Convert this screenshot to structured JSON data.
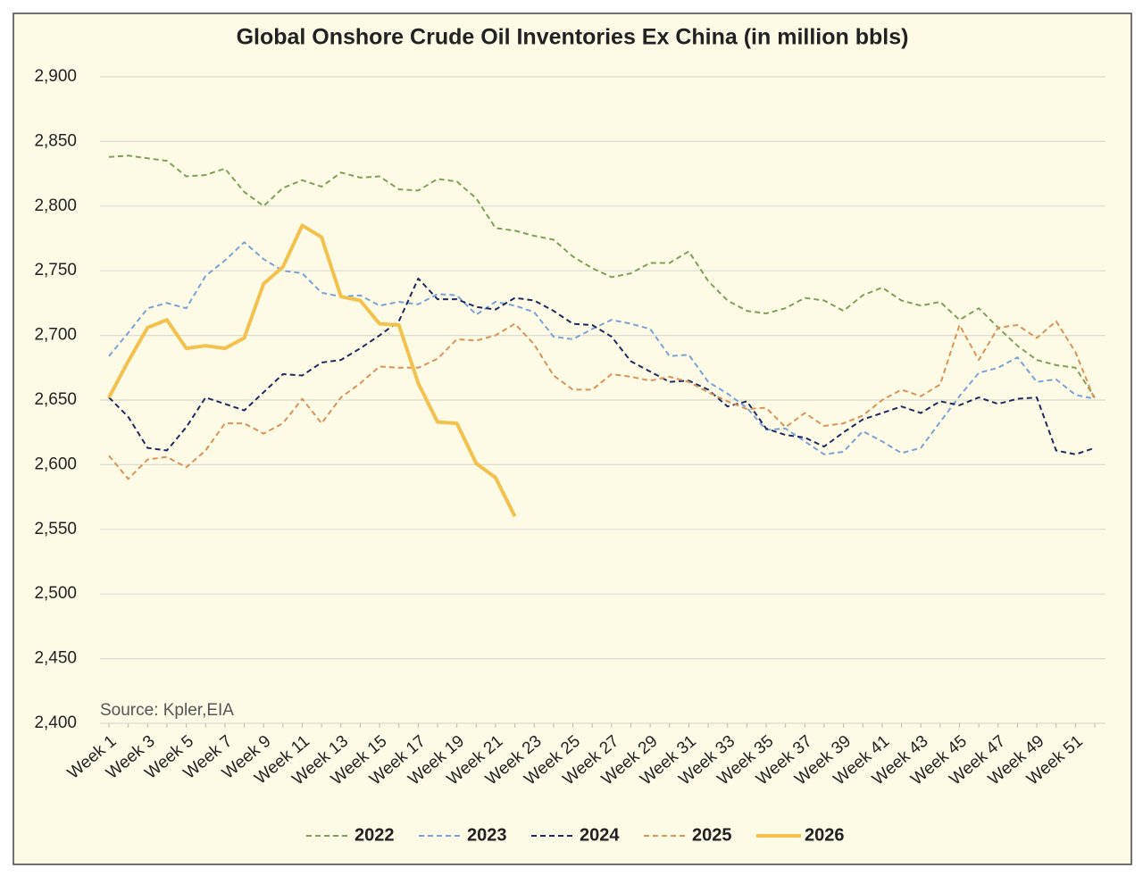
{
  "chart_data": {
    "type": "line",
    "title": "Global Onshore Crude Oil Inventories Ex China (in million bbls)",
    "annotation": "Source: Kpler,EIA",
    "categories": [
      "Week 1",
      null,
      "Week 3",
      null,
      "Week 5",
      null,
      "Week 7",
      null,
      "Week 9",
      null,
      "Week 11",
      null,
      "Week 13",
      null,
      "Week 15",
      null,
      "Week 17",
      null,
      "Week 19",
      null,
      "Week 21",
      null,
      "Week 23",
      null,
      "Week 25",
      null,
      "Week 27",
      null,
      "Week 29",
      null,
      "Week 31",
      null,
      "Week 33",
      null,
      "Week 35",
      null,
      "Week 37",
      null,
      "Week 39",
      null,
      "Week 41",
      null,
      "Week 43",
      null,
      "Week 45",
      null,
      "Week 47",
      null,
      "Week 49",
      null,
      "Week 51",
      null
    ],
    "ylim": [
      2400,
      2900
    ],
    "yticks": [
      {
        "value": 2400,
        "label": "2,400"
      },
      {
        "value": 2450,
        "label": "2,450"
      },
      {
        "value": 2500,
        "label": "2,500"
      },
      {
        "value": 2550,
        "label": "2,550"
      },
      {
        "value": 2600,
        "label": "2,600"
      },
      {
        "value": 2650,
        "label": "2,650"
      },
      {
        "value": 2700,
        "label": "2,700"
      },
      {
        "value": 2750,
        "label": "2,750"
      },
      {
        "value": 2800,
        "label": "2,800"
      },
      {
        "value": 2850,
        "label": "2,850"
      },
      {
        "value": 2900,
        "label": "2,900"
      }
    ],
    "grid": true,
    "legend": "bottom",
    "series": [
      {
        "name": "2022",
        "color": "#7fa05a",
        "dashed": true,
        "values": [
          2838,
          2839,
          2837,
          2835,
          2823,
          2824,
          2829,
          2811,
          2800,
          2814,
          2820,
          2815,
          2826,
          2822,
          2823,
          2813,
          2812,
          2821,
          2819,
          2806,
          2783,
          2781,
          2777,
          2774,
          2761,
          2752,
          2745,
          2748,
          2756,
          2756,
          2765,
          2742,
          2727,
          2719,
          2717,
          2721,
          2729,
          2727,
          2719,
          2731,
          2737,
          2727,
          2723,
          2726,
          2712,
          2721,
          2706,
          2692,
          2681,
          2677,
          2675,
          2652
        ]
      },
      {
        "name": "2023",
        "color": "#7aa2d4",
        "dashed": true,
        "values": [
          2684,
          2702,
          2721,
          2725,
          2721,
          2746,
          2758,
          2772,
          2759,
          2750,
          2748,
          2733,
          2730,
          2731,
          2723,
          2726,
          2724,
          2732,
          2731,
          2716,
          2726,
          2723,
          2718,
          2699,
          2697,
          2705,
          2712,
          2709,
          2705,
          2684,
          2685,
          2664,
          2655,
          2644,
          2627,
          2628,
          2618,
          2608,
          2610,
          2626,
          2618,
          2609,
          2613,
          2633,
          2653,
          2671,
          2675,
          2683,
          2664,
          2666,
          2654,
          2651
        ]
      },
      {
        "name": "2024",
        "color": "#1f2a5c",
        "dashed": true,
        "values": [
          2652,
          2637,
          2613,
          2611,
          2629,
          2652,
          2647,
          2642,
          2656,
          2670,
          2669,
          2679,
          2681,
          2690,
          2700,
          2711,
          2744,
          2728,
          2728,
          2722,
          2720,
          2729,
          2727,
          2719,
          2709,
          2708,
          2699,
          2680,
          2672,
          2664,
          2665,
          2658,
          2645,
          2649,
          2628,
          2623,
          2621,
          2614,
          2625,
          2635,
          2640,
          2645,
          2640,
          2649,
          2646,
          2652,
          2647,
          2651,
          2652,
          2611,
          2608,
          2613
        ]
      },
      {
        "name": "2025",
        "color": "#d9925a",
        "dashed": true,
        "values": [
          2607,
          2589,
          2604,
          2606,
          2598,
          2611,
          2632,
          2632,
          2624,
          2632,
          2651,
          2632,
          2652,
          2663,
          2676,
          2675,
          2675,
          2682,
          2697,
          2696,
          2700,
          2709,
          2693,
          2669,
          2658,
          2658,
          2670,
          2668,
          2665,
          2668,
          2664,
          2656,
          2649,
          2643,
          2644,
          2629,
          2640,
          2630,
          2632,
          2638,
          2650,
          2658,
          2653,
          2662,
          2708,
          2681,
          2706,
          2708,
          2698,
          2711,
          2687,
          2650
        ]
      },
      {
        "name": "2026",
        "color": "#f2c14e",
        "dashed": false,
        "values": [
          2652,
          2680,
          2706,
          2712,
          2690,
          2692,
          2690,
          2698,
          2740,
          2753,
          2785,
          2776,
          2730,
          2727,
          2709,
          2708,
          2663,
          2633,
          2632,
          2601,
          2590,
          2560,
          null,
          null,
          null,
          null,
          null,
          null,
          null,
          null,
          null,
          null,
          null,
          null,
          null,
          null,
          null,
          null,
          null,
          null,
          null,
          null,
          null,
          null,
          null,
          null,
          null,
          null,
          null,
          null,
          null,
          null
        ]
      }
    ]
  }
}
